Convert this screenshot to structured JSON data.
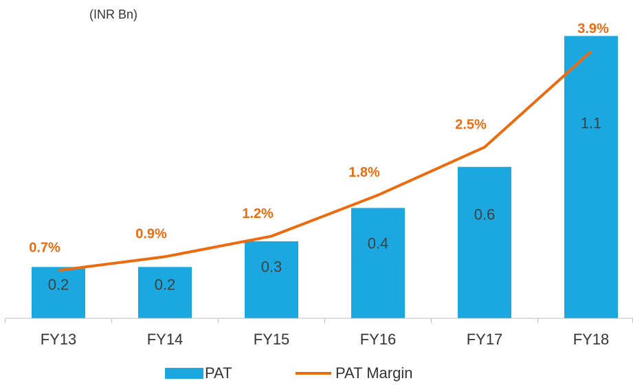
{
  "chart_data": {
    "type": "bar_line",
    "unit_label": "(INR Bn)",
    "categories": [
      "FY13",
      "FY14",
      "FY15",
      "FY16",
      "FY17",
      "FY18"
    ],
    "series": [
      {
        "name": "PAT",
        "type": "bar",
        "color": "#1ba8e0",
        "values": [
          0.2,
          0.2,
          0.3,
          0.43,
          0.59,
          1.1
        ],
        "value_labels": [
          "0.2",
          "0.2",
          "0.3",
          "0.4",
          "0.6",
          "1.1"
        ]
      },
      {
        "name": "PAT Margin",
        "type": "line",
        "axis": "y2",
        "color": "#ec6b0f",
        "values": [
          0.7,
          0.9,
          1.2,
          1.8,
          2.5,
          3.9
        ],
        "value_labels": [
          "0.7%",
          "0.9%",
          "1.2%",
          "1.8%",
          "2.5%",
          "3.9%"
        ]
      }
    ],
    "ylim": [
      0,
      1.2
    ],
    "y2lim": [
      0,
      4.5
    ],
    "legend": "bottom"
  }
}
